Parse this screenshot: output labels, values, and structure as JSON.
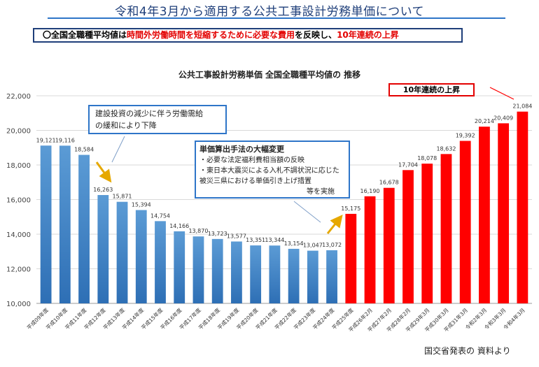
{
  "title": "令和4年3月から適用する公共工事設計労務単価について",
  "summary": {
    "circle": "〇",
    "part1": "全国全職種平均値は",
    "part2": "時間外労働時間を短縮するために必要な費用",
    "part3": "を反映し、",
    "part4": "10年連続の上昇"
  },
  "callouts": {
    "note1": [
      "建設投資の減少に伴う労働需給",
      "の緩和により下降"
    ],
    "note2_title": "単価算出手法の大幅変更",
    "note2_lines": [
      "・必要な法定福利費相当額の反映",
      "・東日本大震災による入札不調状況に応じた",
      "被災三県における単価引き上げ措置"
    ],
    "note2_tail": "等を実施",
    "badge": "10年連続の上昇"
  },
  "source": "国交省発表の 資料より",
  "colors": {
    "blue_top": "#5b9bd5",
    "blue_bottom": "#2e6fb5",
    "red": "#ff0000",
    "arrow": "#e6a800",
    "callout_border": "#2e75c8"
  },
  "chart_data": {
    "type": "bar",
    "title": "公共工事設計労務単価 全国全職種平均値の 推移",
    "ylim": [
      10000,
      22000
    ],
    "yticks": [
      10000,
      12000,
      14000,
      16000,
      18000,
      20000,
      22000
    ],
    "ytick_labels": [
      "10,000",
      "12,000",
      "14,000",
      "16,000",
      "18,000",
      "20,000",
      "22,000"
    ],
    "grid": true,
    "categories": [
      "平成09年度",
      "平成10年度",
      "平成11年度",
      "平成12年度",
      "平成13年度",
      "平成14年度",
      "平成15年度",
      "平成16年度",
      "平成17年度",
      "平成18年度",
      "平成19年度",
      "平成20年度",
      "平成21年度",
      "平成22年度",
      "平成23年度",
      "平成24年度",
      "平成25年度",
      "平成26年2月",
      "平成27年2月",
      "平成28年2月",
      "平成29年3月",
      "平成30年3月",
      "平成31年3月",
      "令和2年3月",
      "令和3年3月",
      "令和4年3月"
    ],
    "values": [
      19121,
      19116,
      18584,
      16263,
      15871,
      15394,
      14754,
      14166,
      13870,
      13723,
      13577,
      13351,
      13344,
      13154,
      13047,
      13072,
      15175,
      16190,
      16678,
      17704,
      18078,
      18632,
      19392,
      20214,
      20409,
      21084
    ],
    "value_labels": [
      "19,121",
      "19,116",
      "18,584",
      "16,263",
      "15,871",
      "15,394",
      "14,754",
      "14,166",
      "13,870",
      "13,723",
      "13,577",
      "13,351",
      "13,344",
      "13,154",
      "13,047",
      "13,072",
      "15,175",
      "16,190",
      "16,678",
      "17,704",
      "18,078",
      "18,632",
      "19,392",
      "20,214",
      "20,409",
      "21,084"
    ],
    "bar_colors": [
      "blue",
      "blue",
      "blue",
      "blue",
      "blue",
      "blue",
      "blue",
      "blue",
      "blue",
      "blue",
      "blue",
      "blue",
      "blue",
      "blue",
      "blue",
      "blue",
      "red",
      "red",
      "red",
      "red",
      "red",
      "red",
      "red",
      "red",
      "red",
      "red"
    ]
  }
}
